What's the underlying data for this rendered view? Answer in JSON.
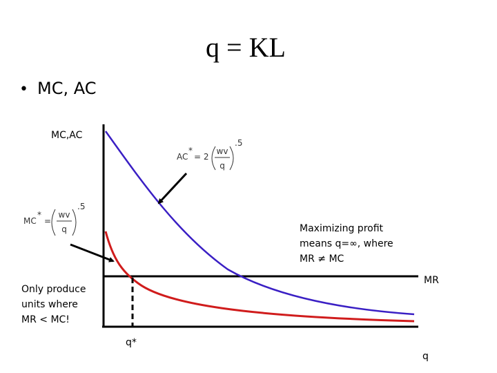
{
  "title": "q = KL",
  "bullet": "MC, AC",
  "diagram": {
    "y_axis_label": "MC,AC",
    "x_axis_label": "q",
    "ac_formula": {
      "lhs": "AC",
      "star": "*",
      "eq": "= 2",
      "numerator": "wv",
      "denominator": "q",
      "exponent": ".5"
    },
    "mc_formula": {
      "lhs": "MC",
      "star": "*",
      "eq": "=",
      "numerator": "wv",
      "denominator": "q",
      "exponent": ".5"
    },
    "mr_label": "MR",
    "q_star_label": "q*",
    "note_right": [
      "Maximizing profit",
      "means q=∞, where",
      "MR ≠ MC"
    ],
    "note_left": [
      "Only produce",
      "units where",
      "MR < MC!"
    ]
  }
}
